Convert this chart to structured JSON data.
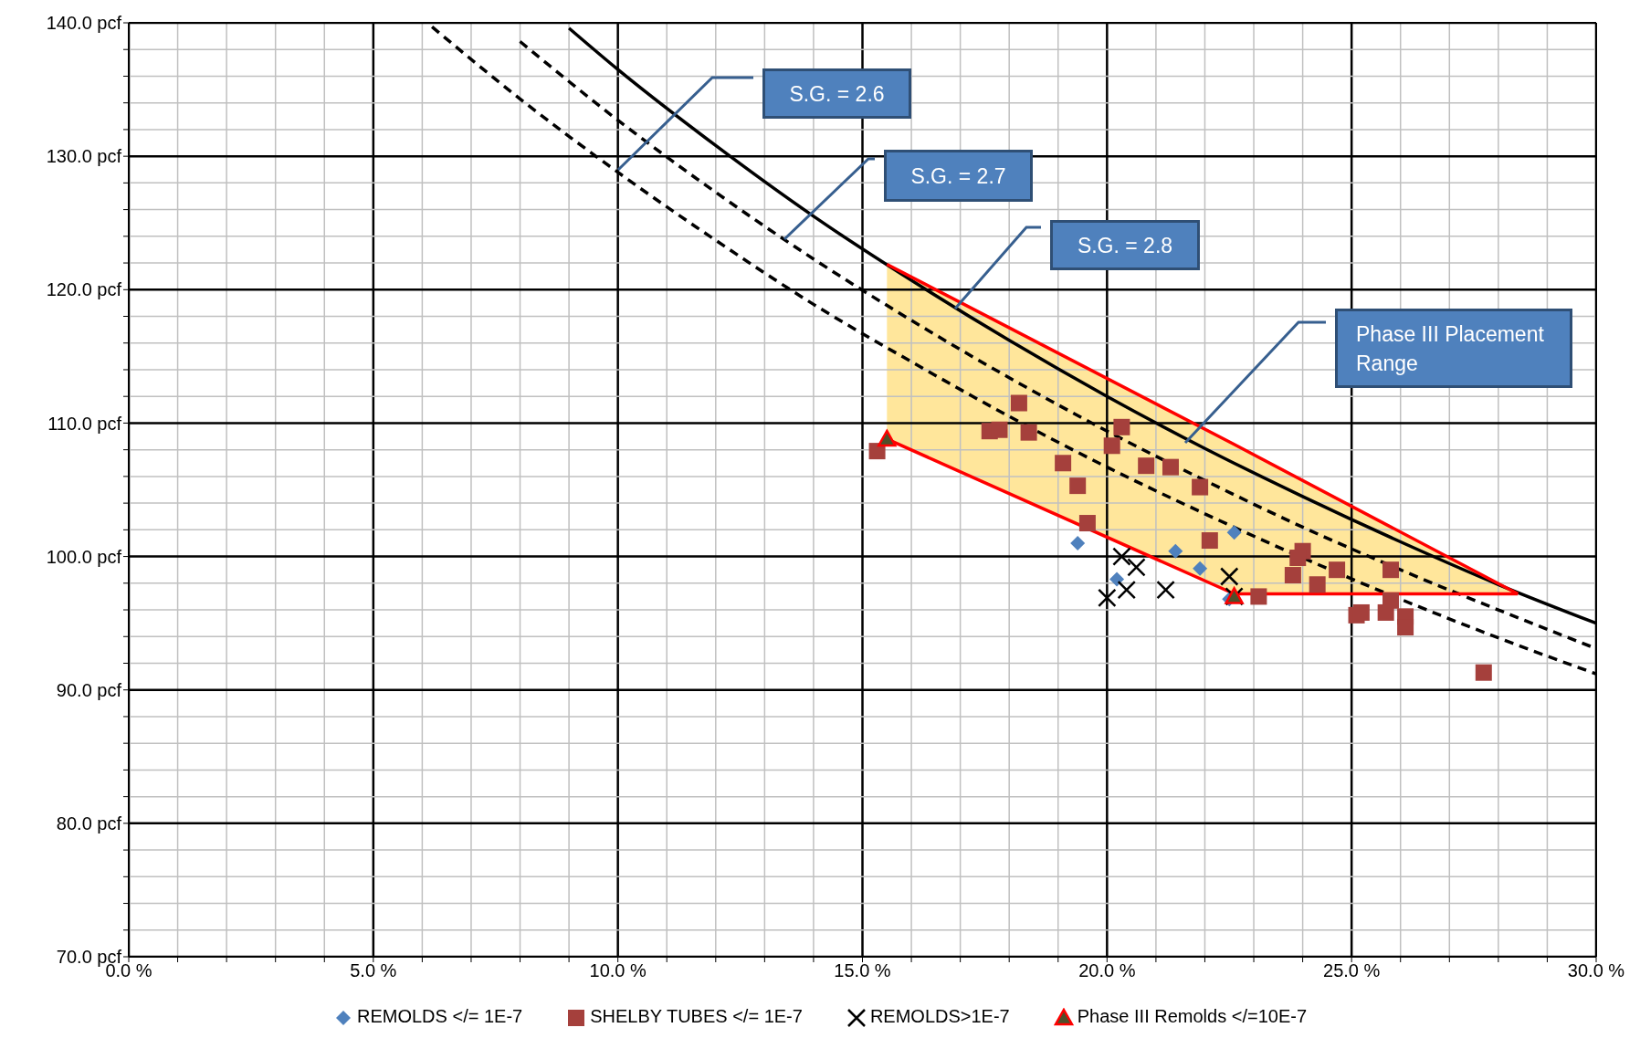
{
  "chart_data": {
    "type": "scatter",
    "xlim": [
      0,
      30
    ],
    "ylim": [
      70,
      140
    ],
    "xticks": [
      {
        "value": 0,
        "label": "0.0 %"
      },
      {
        "value": 1,
        "label": null
      },
      {
        "value": 2,
        "label": null
      },
      {
        "value": 3,
        "label": null
      },
      {
        "value": 4,
        "label": null
      },
      {
        "value": 5,
        "label": "5.0 %"
      },
      {
        "value": 6,
        "label": null
      },
      {
        "value": 7,
        "label": null
      },
      {
        "value": 8,
        "label": null
      },
      {
        "value": 9,
        "label": null
      },
      {
        "value": 10,
        "label": "10.0 %"
      },
      {
        "value": 11,
        "label": null
      },
      {
        "value": 12,
        "label": null
      },
      {
        "value": 13,
        "label": null
      },
      {
        "value": 14,
        "label": null
      },
      {
        "value": 15,
        "label": "15.0 %"
      },
      {
        "value": 16,
        "label": null
      },
      {
        "value": 17,
        "label": null
      },
      {
        "value": 18,
        "label": null
      },
      {
        "value": 19,
        "label": null
      },
      {
        "value": 20,
        "label": "20.0 %"
      },
      {
        "value": 21,
        "label": null
      },
      {
        "value": 22,
        "label": null
      },
      {
        "value": 23,
        "label": null
      },
      {
        "value": 24,
        "label": null
      },
      {
        "value": 25,
        "label": "25.0 %"
      },
      {
        "value": 26,
        "label": null
      },
      {
        "value": 27,
        "label": null
      },
      {
        "value": 28,
        "label": null
      },
      {
        "value": 29,
        "label": null
      },
      {
        "value": 30,
        "label": "30.0 %"
      }
    ],
    "yticks": [
      {
        "value": 70,
        "label": "70.0 pcf"
      },
      {
        "value": 72,
        "label": null
      },
      {
        "value": 74,
        "label": null
      },
      {
        "value": 76,
        "label": null
      },
      {
        "value": 78,
        "label": null
      },
      {
        "value": 80,
        "label": "80.0 pcf"
      },
      {
        "value": 82,
        "label": null
      },
      {
        "value": 84,
        "label": null
      },
      {
        "value": 86,
        "label": null
      },
      {
        "value": 88,
        "label": null
      },
      {
        "value": 90,
        "label": "90.0 pcf"
      },
      {
        "value": 92,
        "label": null
      },
      {
        "value": 94,
        "label": null
      },
      {
        "value": 96,
        "label": null
      },
      {
        "value": 98,
        "label": null
      },
      {
        "value": 100,
        "label": "100.0 pcf"
      },
      {
        "value": 102,
        "label": null
      },
      {
        "value": 104,
        "label": null
      },
      {
        "value": 106,
        "label": null
      },
      {
        "value": 108,
        "label": null
      },
      {
        "value": 110,
        "label": "110.0 pcf"
      },
      {
        "value": 112,
        "label": null
      },
      {
        "value": 114,
        "label": null
      },
      {
        "value": 116,
        "label": null
      },
      {
        "value": 118,
        "label": null
      },
      {
        "value": 120,
        "label": "120.0 pcf"
      },
      {
        "value": 122,
        "label": null
      },
      {
        "value": 124,
        "label": null
      },
      {
        "value": 126,
        "label": null
      },
      {
        "value": 128,
        "label": null
      },
      {
        "value": 130,
        "label": "130.0 pcf"
      },
      {
        "value": 132,
        "label": null
      },
      {
        "value": 134,
        "label": null
      },
      {
        "value": 136,
        "label": null
      },
      {
        "value": 138,
        "label": null
      },
      {
        "value": 140,
        "label": "140.0 pcf"
      }
    ],
    "grid": true,
    "legend": "bottom",
    "series": [
      {
        "type": "line",
        "color": "#000000",
        "line_style": "solid",
        "marker": "none",
        "x": [
          9,
          10,
          12,
          14,
          16,
          18,
          20,
          22,
          24,
          26,
          28,
          30
        ],
        "values": [
          139.6,
          136.5,
          130.8,
          125.5,
          120.7,
          116.2,
          112.0,
          108.1,
          104.5,
          101.1,
          97.9,
          95.0
        ]
      },
      {
        "type": "line",
        "color": "#000000",
        "line_style": "dashed",
        "marker": "none",
        "x": [
          8,
          10,
          12,
          14,
          16,
          18,
          20,
          22,
          24,
          26,
          28,
          30
        ],
        "values": [
          138.6,
          132.7,
          127.3,
          122.3,
          117.7,
          113.4,
          109.4,
          105.7,
          102.2,
          99.0,
          96.0,
          93.1
        ]
      },
      {
        "type": "line",
        "color": "#000000",
        "line_style": "dashed",
        "marker": "none",
        "x": [
          6.2,
          8,
          10,
          12,
          14,
          16,
          18,
          20,
          22,
          24,
          26,
          28,
          30
        ],
        "values": [
          139.7,
          134.3,
          128.8,
          123.7,
          118.9,
          114.6,
          110.5,
          106.7,
          103.2,
          99.9,
          96.8,
          93.9,
          91.2
        ]
      },
      {
        "name": "REMOLDS </= 1E-7",
        "color": "#4f81bd",
        "marker": "diamond",
        "x": [
          19.4,
          20.2,
          21.4,
          21.9,
          22.6,
          22.5
        ],
        "values": [
          101.0,
          98.3,
          100.4,
          99.1,
          101.8,
          96.8
        ]
      },
      {
        "name": "SHELBY TUBES </= 1E-7",
        "color": "#a5403c",
        "marker": "square",
        "x": [
          15.3,
          17.6,
          17.8,
          18.2,
          18.4,
          19.1,
          19.4,
          19.6,
          20.1,
          20.3,
          20.8,
          21.3,
          21.9,
          22.1,
          23.1,
          23.8,
          24.0,
          23.9,
          24.3,
          24.7,
          25.8,
          25.1,
          25.2,
          25.7,
          25.8,
          26.1,
          26.1,
          27.7
        ],
        "values": [
          107.9,
          109.4,
          109.5,
          111.5,
          109.3,
          107.0,
          105.3,
          102.5,
          108.3,
          109.7,
          106.8,
          106.7,
          105.2,
          101.2,
          97.0,
          98.6,
          100.4,
          99.9,
          97.9,
          99.0,
          99.0,
          95.6,
          95.8,
          95.8,
          96.7,
          95.5,
          94.7,
          91.3
        ]
      },
      {
        "name": "REMOLDS>1E-7",
        "color": "#000000",
        "marker": "cross",
        "x": [
          20.3,
          20.6,
          20.4,
          20.0,
          21.2,
          22.5,
          22.6
        ],
        "values": [
          100.0,
          99.2,
          97.5,
          96.9,
          97.5,
          98.5,
          97.0
        ]
      },
      {
        "name": "Phase III Remolds </=10E-7",
        "color": "#ff0000",
        "marker": "triangle",
        "x": [
          15.5,
          22.6
        ],
        "values": [
          108.8,
          97.0
        ]
      },
      {
        "type": "line",
        "color": "#ff0000",
        "line_style": "solid",
        "marker": "none",
        "x": [
          15.5,
          22.6,
          28.4
        ],
        "values": [
          108.8,
          97.2,
          97.2
        ],
        "lower": [
          108.8,
          97.2,
          97.2
        ],
        "upper": [
          121.9,
          108.4,
          97.2
        ]
      },
      {
        "type": "line",
        "color": "#ff0000",
        "line_style": "solid",
        "marker": "none",
        "x": [
          15.5,
          22.6,
          28.4
        ],
        "values": [
          121.9,
          108.4,
          97.2
        ]
      }
    ],
    "annotations": [
      "S.G. = 2.6",
      "S.G. = 2.7",
      "S.G. = 2.8",
      "Phase III Placement Range"
    ]
  }
}
